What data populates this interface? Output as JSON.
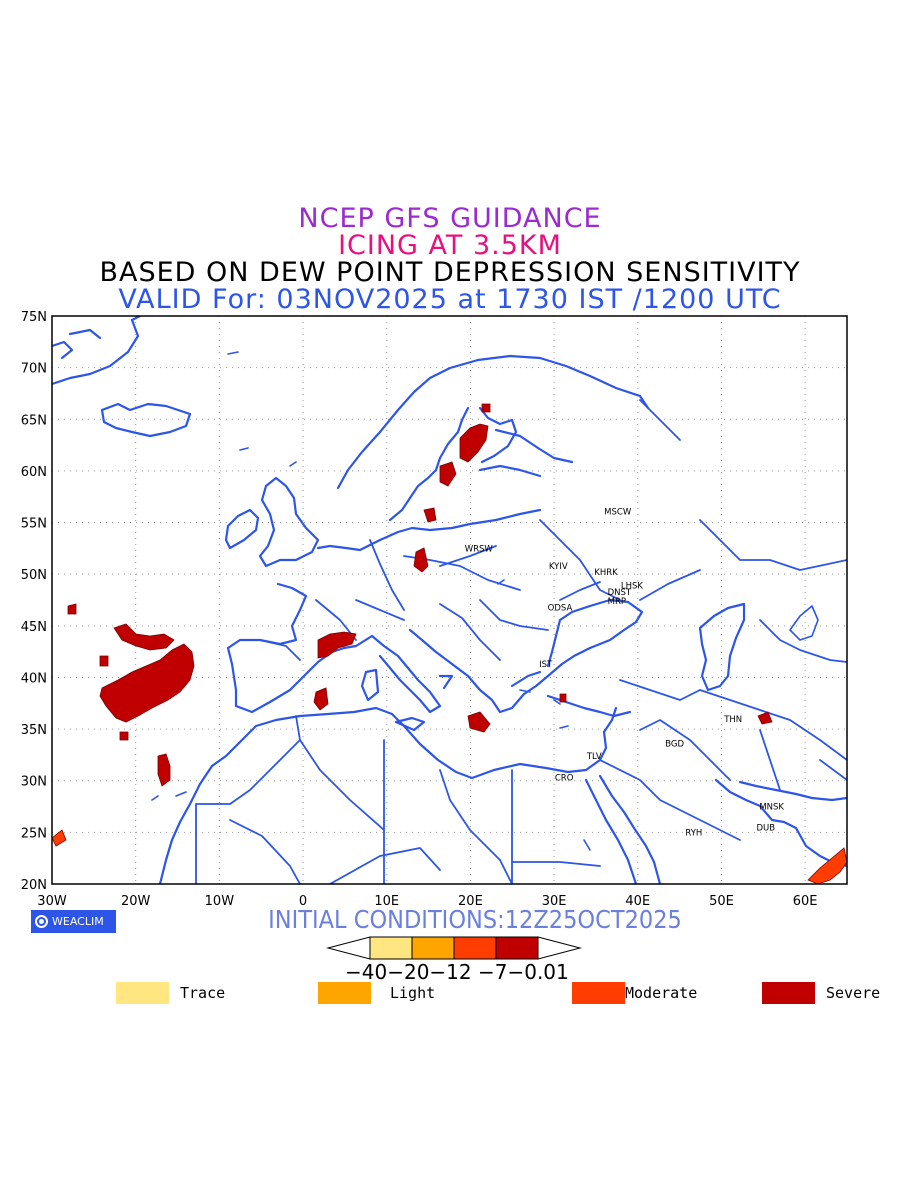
{
  "titles": {
    "line1": "NCEP GFS GUIDANCE",
    "line2": "ICING AT 3.5KM",
    "line3": "BASED ON DEW POINT DEPRESSION SENSITIVITY",
    "line4": "VALID For: 03NOV2025 at 1730 IST /1200 UTC"
  },
  "map": {
    "lon_labels": [
      "30W",
      "20W",
      "10W",
      "0",
      "10E",
      "20E",
      "30E",
      "40E",
      "50E",
      "60E"
    ],
    "lat_labels": [
      "75N",
      "70N",
      "65N",
      "60N",
      "55N",
      "50N",
      "45N",
      "40N",
      "35N",
      "30N",
      "25N",
      "20N"
    ],
    "lon_range": [
      -30,
      65
    ],
    "lat_range": [
      20,
      75
    ],
    "grid": "dotted",
    "border_color": "#2d55e8",
    "cities": [
      "MSCW",
      "WRSW",
      "KYIV",
      "KHRK",
      "LHSK",
      "DNST",
      "MRP",
      "ODSA",
      "IST",
      "THN",
      "BGD",
      "TLV",
      "CRO",
      "MNSK",
      "RYH",
      "DUB"
    ]
  },
  "branding": {
    "badge": "WEACLIM"
  },
  "initial_conditions": "INITIAL CONDITIONS:12Z25OCT2025",
  "colorbar": {
    "tick_text": "−40−20−12 −7−0.01",
    "colors": [
      "#ffe680",
      "#ffa500",
      "#ff3d00",
      "#c00000"
    ]
  },
  "legend": [
    {
      "label": "Trace",
      "color": "#ffe680"
    },
    {
      "label": "Light",
      "color": "#ffa500"
    },
    {
      "label": "Moderate",
      "color": "#ff3d00"
    },
    {
      "label": "Severe",
      "color": "#c00000"
    }
  ]
}
